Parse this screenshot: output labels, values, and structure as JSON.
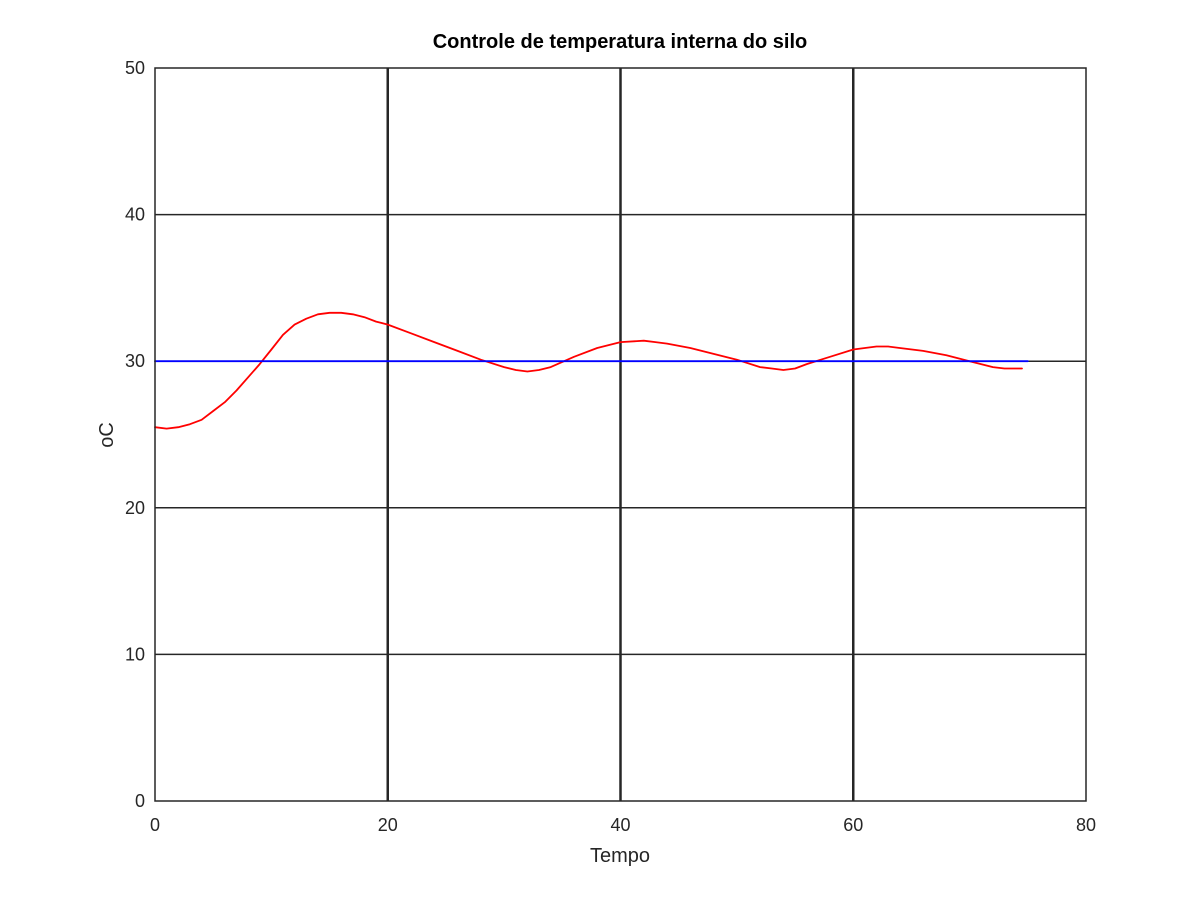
{
  "chart_data": {
    "type": "line",
    "title": "Controle de temperatura interna do silo",
    "xlabel": "Tempo",
    "ylabel": "oC",
    "xlim": [
      0,
      80
    ],
    "ylim": [
      0,
      50
    ],
    "x_ticks": [
      0,
      20,
      40,
      60,
      80
    ],
    "y_ticks": [
      0,
      10,
      20,
      30,
      40,
      50
    ],
    "grid": true,
    "series": [
      {
        "color": "#ff0000",
        "x": [
          0,
          1,
          2,
          3,
          4,
          5,
          6,
          7,
          8,
          9,
          10,
          11,
          12,
          13,
          14,
          15,
          16,
          17,
          18,
          19,
          20,
          22,
          24,
          26,
          28,
          30,
          31,
          32,
          33,
          34,
          36,
          38,
          40,
          42,
          43,
          44,
          46,
          48,
          50,
          52,
          53,
          54,
          55,
          56,
          58,
          60,
          62,
          63,
          64,
          66,
          68,
          70,
          72,
          73,
          74.5
        ],
        "y": [
          25.5,
          25.4,
          25.5,
          25.7,
          26.0,
          26.6,
          27.2,
          28.0,
          28.9,
          29.8,
          30.8,
          31.8,
          32.5,
          32.9,
          33.2,
          33.3,
          33.3,
          33.2,
          33.0,
          32.7,
          32.5,
          31.9,
          31.3,
          30.7,
          30.1,
          29.6,
          29.4,
          29.3,
          29.4,
          29.6,
          30.3,
          30.9,
          31.3,
          31.4,
          31.3,
          31.2,
          30.9,
          30.5,
          30.1,
          29.6,
          29.5,
          29.4,
          29.5,
          29.8,
          30.3,
          30.8,
          31.0,
          31.0,
          30.9,
          30.7,
          30.4,
          30.0,
          29.6,
          29.5,
          29.5
        ]
      },
      {
        "color": "#0000ff",
        "x": [
          0,
          75
        ],
        "y": [
          30,
          30
        ]
      }
    ]
  }
}
